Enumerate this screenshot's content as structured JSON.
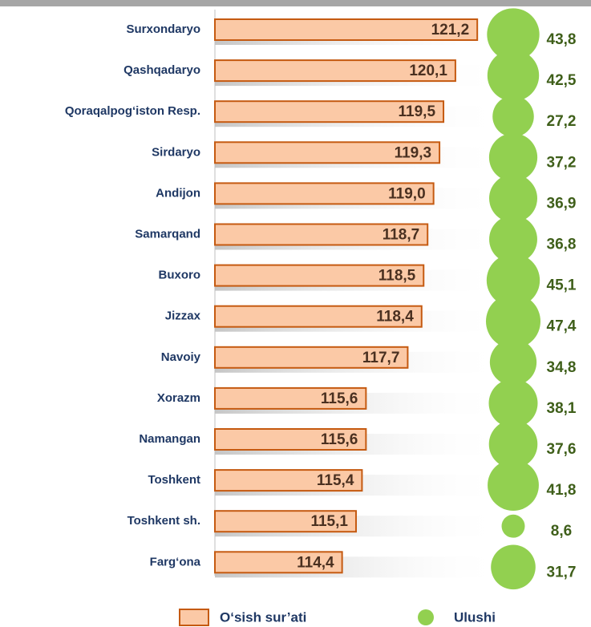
{
  "chart_data": {
    "type": "bar",
    "orientation": "horizontal",
    "categories": [
      "Surxondaryo",
      "Qashqadaryo",
      "Qoraqalpog‘iston Resp.",
      "Sirdaryo",
      "Andijon",
      "Samarqand",
      "Buxoro",
      "Jizzax",
      "Navoiy",
      "Xorazm",
      "Namangan",
      "Toshkent",
      "Toshkent sh.",
      "Farg‘ona"
    ],
    "series": [
      {
        "name": "O‘sish sur’ati",
        "color": "#fbc9a6",
        "edge": "#c55a11",
        "values": [
          121.2,
          120.1,
          119.5,
          119.3,
          119.0,
          118.7,
          118.5,
          118.4,
          117.7,
          115.6,
          115.6,
          115.4,
          115.1,
          114.4
        ],
        "value_labels": [
          "121,2",
          "120,1",
          "119,5",
          "119,3",
          "119,0",
          "118,7",
          "118,5",
          "118,4",
          "117,7",
          "115,6",
          "115,6",
          "115,4",
          "115,1",
          "114,4"
        ]
      },
      {
        "name": "Ulushi",
        "color": "#92d050",
        "marker": "bubble",
        "values": [
          43.8,
          42.5,
          27.2,
          37.2,
          36.9,
          36.8,
          45.1,
          47.4,
          34.8,
          38.1,
          37.6,
          41.8,
          8.6,
          31.7
        ],
        "value_labels": [
          "43,8",
          "42,5",
          "27,2",
          "37,2",
          "36,9",
          "36,8",
          "45,1",
          "47,4",
          "34,8",
          "38,1",
          "37,6",
          "41,8",
          "8,6",
          "31,7"
        ]
      }
    ],
    "xlim": [
      108,
      122
    ]
  }
}
